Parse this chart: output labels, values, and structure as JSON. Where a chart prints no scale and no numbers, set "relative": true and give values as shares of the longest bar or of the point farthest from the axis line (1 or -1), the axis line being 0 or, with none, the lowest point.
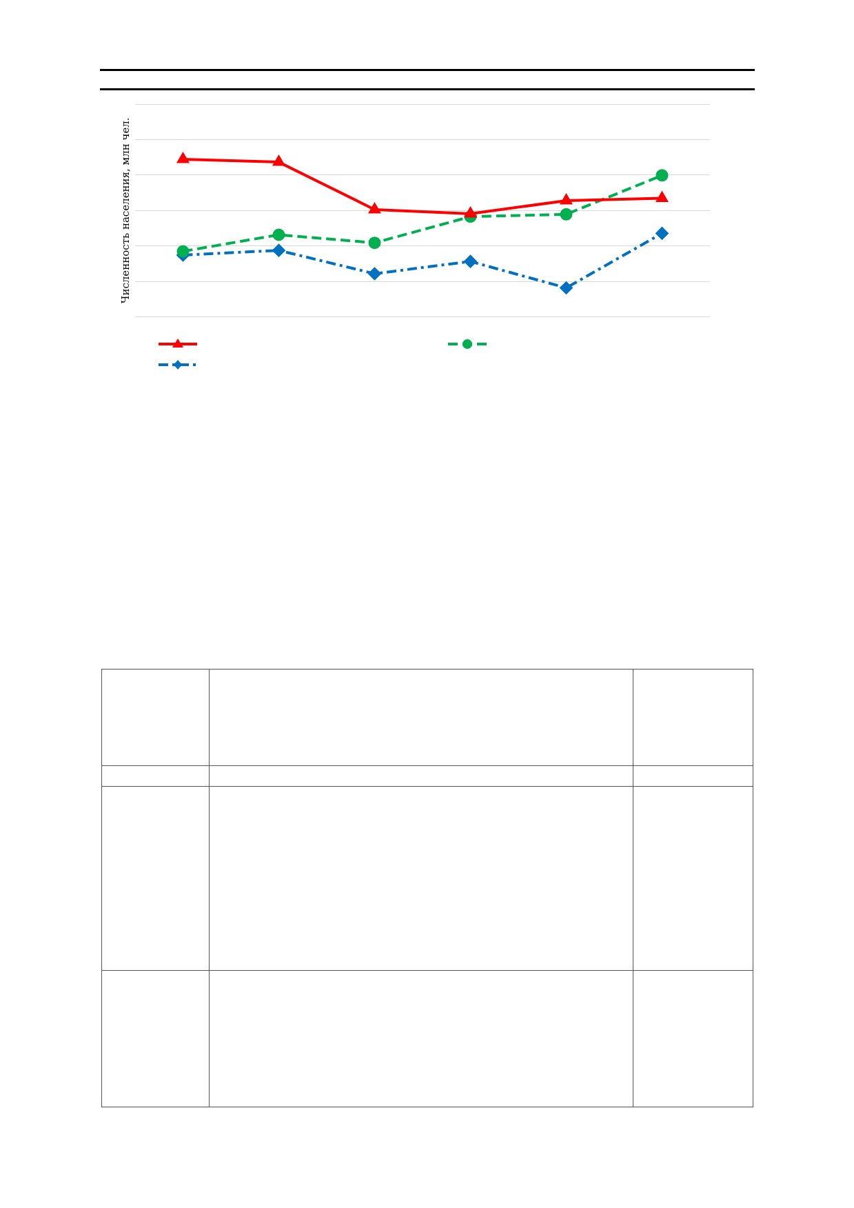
{
  "chart_data": {
    "type": "line",
    "ylabel": "Численность населения, млн чел.",
    "relative": true,
    "grid": "y",
    "categories": [
      null,
      null,
      null,
      null,
      null,
      null
    ],
    "series": [
      {
        "color": "#ff0000",
        "marker": "triangle",
        "line_style": "solid",
        "values": [
          1,
          0.982,
          0.681,
          0.654,
          0.738,
          0.753
        ]
      },
      {
        "color": "#00b050",
        "marker": "circle",
        "line_style": "dashed",
        "values": [
          0.416,
          0.521,
          0.47,
          0.636,
          0.651,
          0.898
        ]
      },
      {
        "color": "#0070c0",
        "marker": "diamond",
        "line_style": "dashdot",
        "values": [
          0.392,
          0.422,
          0.274,
          0.352,
          0.184,
          0.53
        ]
      }
    ]
  }
}
